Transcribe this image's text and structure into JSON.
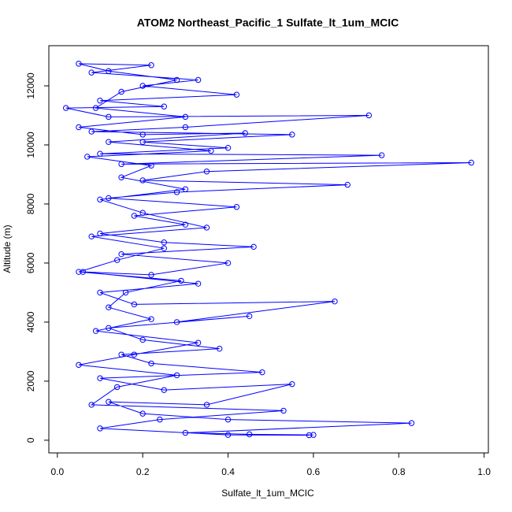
{
  "chart_data": {
    "type": "line",
    "marker": "open-circle",
    "color": "#0000ff",
    "title": "ATOM2 Northeast_Pacific_1 Sulfate_lt_1um_MCIC",
    "x_label": "Sulfate_lt_1um_MCIC",
    "y_label": "Altitude (m)",
    "xlim": [
      -0.02,
      1.01
    ],
    "ylim": [
      -430,
      13360
    ],
    "xticks": [
      {
        "value": 0,
        "label": "0.0"
      },
      0.2,
      0.4,
      0.6,
      0.8,
      {
        "value": 1,
        "label": "1.0"
      }
    ],
    "yticks": [
      0,
      2000,
      4000,
      6000,
      8000,
      10000,
      12000
    ],
    "x": [
      0.6,
      0.45,
      0.3,
      0.83,
      0.4,
      0.2,
      0.12,
      0.35,
      0.55,
      0.25,
      0.1,
      0.48,
      0.22,
      0.15,
      0.38,
      0.2,
      0.12,
      0.45,
      0.28,
      0.65,
      0.18,
      0.1,
      0.33,
      0.06,
      0.22,
      0.4,
      0.15,
      0.46,
      0.25,
      0.1,
      0.3,
      0.18,
      0.42,
      0.12,
      0.28,
      0.68,
      0.2,
      0.35,
      0.97,
      0.15,
      0.76,
      0.1,
      0.4,
      0.2,
      0.55,
      0.08,
      0.3,
      0.73,
      0.12,
      0.02,
      0.25,
      0.1,
      0.42,
      0.2,
      0.33,
      0.08,
      0.22,
      0.05,
      0.12,
      0.28,
      0.15,
      0.09,
      0.3,
      0.05,
      0.2,
      0.44,
      0.12,
      0.36,
      0.07,
      0.22,
      0.15,
      0.3,
      0.1,
      0.2,
      0.35,
      0.08,
      0.25,
      0.14,
      0.05,
      0.29,
      0.16,
      0.12,
      0.22,
      0.09,
      0.33,
      0.18,
      0.05,
      0.28,
      0.14,
      0.08,
      0.53,
      0.24,
      0.1,
      0.4,
      0.59
    ],
    "values": [
      180,
      200,
      250,
      580,
      700,
      900,
      1300,
      1200,
      1900,
      1700,
      2100,
      2300,
      2600,
      2900,
      3100,
      3400,
      3800,
      4200,
      4000,
      4700,
      4600,
      5000,
      5300,
      5700,
      5600,
      6000,
      6300,
      6550,
      6700,
      7000,
      7300,
      7600,
      7900,
      8200,
      8400,
      8650,
      8800,
      9100,
      9400,
      9350,
      9650,
      9700,
      9900,
      10100,
      10350,
      10450,
      10600,
      11000,
      10950,
      11250,
      11300,
      11500,
      11700,
      12000,
      12200,
      12450,
      12700,
      12750,
      12500,
      12200,
      11800,
      11250,
      10950,
      10600,
      10350,
      10400,
      10100,
      9800,
      9600,
      9300,
      8900,
      8500,
      8150,
      7700,
      7200,
      6900,
      6500,
      6100,
      5700,
      5400,
      5000,
      4500,
      4100,
      3700,
      3300,
      2900,
      2550,
      2200,
      1800,
      1200,
      1000,
      700,
      400,
      180,
      170
    ]
  }
}
